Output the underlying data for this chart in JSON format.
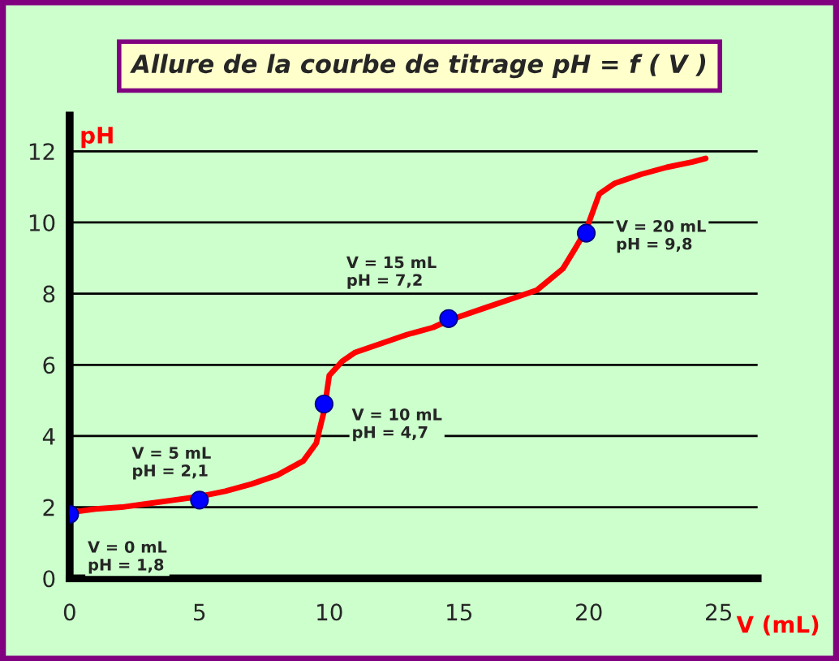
{
  "chart_data": {
    "type": "line",
    "title": "Allure de la courbe de titrage pH = f ( V )",
    "xlabel": "V (mL)",
    "ylabel": "pH",
    "xlim": [
      0,
      26.5
    ],
    "ylim": [
      0,
      13
    ],
    "xticks": [
      0,
      5,
      10,
      15,
      20,
      25
    ],
    "yticks": [
      0,
      2,
      4,
      6,
      8,
      10,
      12
    ],
    "grid": "y",
    "legend": false,
    "series": [
      {
        "color": "#ff0000",
        "marker": "none",
        "line_style": "solid",
        "x": [
          0,
          1,
          2,
          3,
          4,
          5,
          6,
          7,
          8,
          9,
          9.5,
          9.8,
          10,
          10.5,
          11,
          12,
          13,
          14,
          14.6,
          16,
          17,
          18,
          19,
          19.5,
          19.9,
          20.4,
          21,
          22,
          23,
          24,
          24.5
        ],
        "values": [
          1.85,
          1.95,
          2.0,
          2.1,
          2.2,
          2.3,
          2.45,
          2.65,
          2.9,
          3.3,
          3.8,
          4.7,
          5.7,
          6.1,
          6.35,
          6.6,
          6.85,
          7.05,
          7.25,
          7.6,
          7.85,
          8.1,
          8.7,
          9.3,
          9.8,
          10.8,
          11.1,
          11.35,
          11.55,
          11.7,
          11.8
        ]
      },
      {
        "type": "scatter",
        "color": "#0000ff",
        "marker": "circle",
        "x": [
          0,
          5,
          9.8,
          14.6,
          19.9
        ],
        "values": [
          1.8,
          2.2,
          4.9,
          7.3,
          9.7
        ]
      }
    ],
    "annotations": [
      {
        "text": "V = 0 mL\npH = 1,8",
        "x": 0,
        "y": 1.8
      },
      {
        "text": "V = 5 mL\npH = 2,1",
        "x": 5,
        "y": 2.1
      },
      {
        "text": "V = 10 mL\npH = 4,7",
        "x": 10,
        "y": 4.7
      },
      {
        "text": "V = 15 mL\npH = 7,2",
        "x": 15,
        "y": 7.2
      },
      {
        "text": "V = 20 mL\npH = 9,8",
        "x": 20,
        "y": 9.8
      }
    ]
  }
}
